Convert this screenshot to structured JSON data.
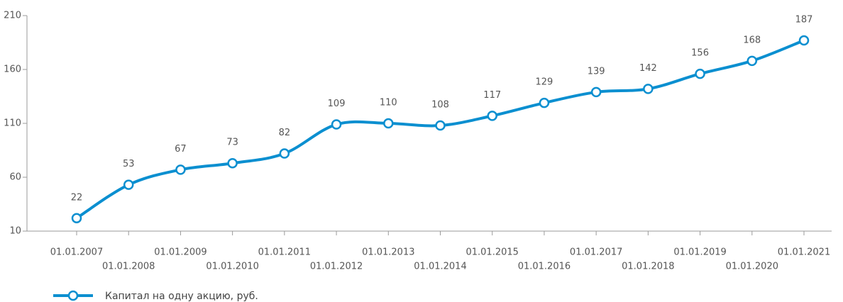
{
  "chart_data": {
    "type": "line",
    "categories": [
      "01.01.2007",
      "01.01.2008",
      "01.01.2009",
      "01.01.2010",
      "01.01.2011",
      "01.01.2012",
      "01.01.2013",
      "01.01.2014",
      "01.01.2015",
      "01.01.2016",
      "01.01.2017",
      "01.01.2018",
      "01.01.2019",
      "01.01.2020",
      "01.01.2021"
    ],
    "series": [
      {
        "name": "Капитал на одну акцию, руб.",
        "color": "#0b8fd0",
        "values": [
          22,
          53,
          67,
          73,
          82,
          109,
          110,
          108,
          117,
          129,
          139,
          142,
          156,
          168,
          187
        ]
      }
    ],
    "ylim": [
      10,
      210
    ],
    "yticks": [
      10,
      60,
      110,
      160,
      210
    ],
    "grid": false
  }
}
